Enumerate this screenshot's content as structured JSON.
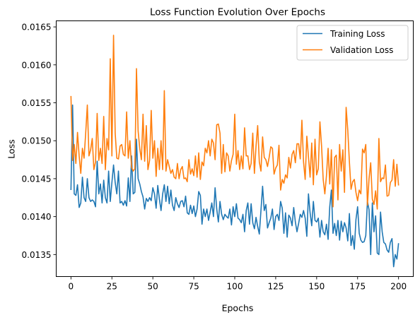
{
  "chart_data": {
    "type": "line",
    "title": "Loss Function Evolution Over Epochs",
    "xlabel": "Epochs",
    "ylabel": "Loss",
    "xlim": [
      -9,
      209
    ],
    "ylim": [
      0.01321,
      0.01658
    ],
    "xticks": [
      0,
      25,
      50,
      75,
      100,
      125,
      150,
      175,
      200
    ],
    "yticks": [
      0.0135,
      0.014,
      0.0145,
      0.015,
      0.0155,
      0.016,
      0.0165
    ],
    "ytick_labels": [
      "0.0135",
      "0.0140",
      "0.0145",
      "0.0150",
      "0.0155",
      "0.0160",
      "0.0165"
    ],
    "grid": false,
    "legend_position": "top-right",
    "series": [
      {
        "name": "Training Loss",
        "color": "#1f77b4",
        "x_start": 0,
        "values": [
          0.01435,
          0.01547,
          0.0143,
          0.01428,
          0.01442,
          0.01412,
          0.01418,
          0.01452,
          0.01425,
          0.0142,
          0.0145,
          0.01425,
          0.0142,
          0.01422,
          0.0142,
          0.01413,
          0.01473,
          0.0143,
          0.01443,
          0.01418,
          0.01448,
          0.01425,
          0.01418,
          0.0146,
          0.0142,
          0.01445,
          0.01468,
          0.01445,
          0.0143,
          0.0146,
          0.01418,
          0.0142,
          0.01415,
          0.01421,
          0.01414,
          0.01451,
          0.0142,
          0.0148,
          0.0143,
          0.01432,
          0.01502,
          0.0145,
          0.01443,
          0.01433,
          0.01426,
          0.0141,
          0.01424,
          0.0142,
          0.01425,
          0.01421,
          0.01438,
          0.0143,
          0.01411,
          0.01441,
          0.01423,
          0.01408,
          0.0143,
          0.01442,
          0.0142,
          0.0144,
          0.01417,
          0.01435,
          0.01415,
          0.01408,
          0.01425,
          0.01417,
          0.01412,
          0.0142,
          0.01421,
          0.01413,
          0.01427,
          0.01405,
          0.01403,
          0.01415,
          0.01404,
          0.01414,
          0.014,
          0.0141,
          0.01433,
          0.01428,
          0.0139,
          0.0141,
          0.014,
          0.0141,
          0.01395,
          0.01406,
          0.01418,
          0.014,
          0.01438,
          0.0141,
          0.01393,
          0.0142,
          0.01403,
          0.01396,
          0.01403,
          0.014,
          0.01398,
          0.0141,
          0.01389,
          0.01413,
          0.014,
          0.01417,
          0.01398,
          0.01396,
          0.01392,
          0.01403,
          0.0138,
          0.01408,
          0.01418,
          0.0139,
          0.01417,
          0.01392,
          0.01384,
          0.01399,
          0.01387,
          0.01377,
          0.01408,
          0.0144,
          0.01408,
          0.01416,
          0.01385,
          0.01392,
          0.01398,
          0.0141,
          0.01383,
          0.014,
          0.01403,
          0.01395,
          0.0142,
          0.01411,
          0.01378,
          0.01405,
          0.01373,
          0.01402,
          0.01398,
          0.01388,
          0.01412,
          0.01393,
          0.0138,
          0.01391,
          0.01403,
          0.01399,
          0.01408,
          0.01398,
          0.01374,
          0.0143,
          0.01405,
          0.01388,
          0.0142,
          0.01395,
          0.01393,
          0.01398,
          0.01373,
          0.01395,
          0.0138,
          0.01376,
          0.0139,
          0.0137,
          0.01413,
          0.01435,
          0.01378,
          0.01391,
          0.01375,
          0.01395,
          0.01369,
          0.01394,
          0.0138,
          0.01392,
          0.01385,
          0.01368,
          0.01404,
          0.01362,
          0.01375,
          0.01357,
          0.01396,
          0.01413,
          0.01378,
          0.01369,
          0.01366,
          0.01367,
          0.01375,
          0.0142,
          0.01409,
          0.0135,
          0.01418,
          0.0138,
          0.01401,
          0.01352,
          0.0135,
          0.01406,
          0.0138,
          0.01366,
          0.01364,
          0.01356,
          0.01353,
          0.01366,
          0.01371,
          0.01334,
          0.0135,
          0.01344,
          0.01365
        ]
      },
      {
        "name": "Validation Loss",
        "color": "#ff7f0e",
        "x_start": 0,
        "values": [
          0.01559,
          0.01474,
          0.01495,
          0.0147,
          0.01511,
          0.0148,
          0.01457,
          0.0149,
          0.01477,
          0.0151,
          0.01547,
          0.0148,
          0.01488,
          0.01503,
          0.01462,
          0.01472,
          0.01536,
          0.01474,
          0.0149,
          0.0147,
          0.01532,
          0.01462,
          0.01503,
          0.01488,
          0.01608,
          0.0148,
          0.01639,
          0.0151,
          0.01477,
          0.01476,
          0.01493,
          0.01495,
          0.01482,
          0.0148,
          0.01538,
          0.01477,
          0.015,
          0.01465,
          0.0146,
          0.01463,
          0.01595,
          0.01513,
          0.0149,
          0.01475,
          0.01535,
          0.01473,
          0.0152,
          0.01462,
          0.01474,
          0.0154,
          0.01477,
          0.015,
          0.01453,
          0.0149,
          0.01462,
          0.015,
          0.01462,
          0.01566,
          0.0146,
          0.01475,
          0.01466,
          0.01457,
          0.01462,
          0.01452,
          0.0145,
          0.0147,
          0.0145,
          0.01462,
          0.01466,
          0.0145,
          0.01451,
          0.01446,
          0.01475,
          0.01456,
          0.01463,
          0.01454,
          0.0148,
          0.01452,
          0.01484,
          0.01449,
          0.01472,
          0.01467,
          0.0149,
          0.01484,
          0.015,
          0.0148,
          0.01502,
          0.01497,
          0.01475,
          0.01521,
          0.01522,
          0.0151,
          0.01457,
          0.01495,
          0.01459,
          0.01484,
          0.0148,
          0.0146,
          0.01474,
          0.01482,
          0.01535,
          0.01469,
          0.01487,
          0.01462,
          0.0148,
          0.01463,
          0.01517,
          0.0148,
          0.0148,
          0.01462,
          0.0147,
          0.0151,
          0.01457,
          0.01493,
          0.0152,
          0.01472,
          0.0146,
          0.01505,
          0.01478,
          0.01475,
          0.01466,
          0.01478,
          0.01492,
          0.0149,
          0.01456,
          0.01464,
          0.01468,
          0.01494,
          0.01435,
          0.01449,
          0.01444,
          0.01455,
          0.01451,
          0.01478,
          0.01464,
          0.01482,
          0.01487,
          0.01471,
          0.01496,
          0.01496,
          0.01476,
          0.01527,
          0.01472,
          0.01449,
          0.01506,
          0.01479,
          0.01452,
          0.01497,
          0.01442,
          0.01502,
          0.01455,
          0.01463,
          0.01525,
          0.01493,
          0.01449,
          0.0143,
          0.01454,
          0.0149,
          0.01443,
          0.01488,
          0.01413,
          0.01478,
          0.01481,
          0.01422,
          0.01495,
          0.0146,
          0.01488,
          0.01432,
          0.01544,
          0.01514,
          0.01472,
          0.01436,
          0.01446,
          0.01449,
          0.01432,
          0.01421,
          0.01435,
          0.0143,
          0.01489,
          0.01484,
          0.01495,
          0.01415,
          0.0145,
          0.01471,
          0.01423,
          0.01416,
          0.01434,
          0.0141,
          0.01503,
          0.01446,
          0.01451,
          0.0145,
          0.01468,
          0.01427,
          0.01428,
          0.01445,
          0.01448,
          0.01475,
          0.0144,
          0.01469,
          0.01441
        ]
      }
    ]
  }
}
